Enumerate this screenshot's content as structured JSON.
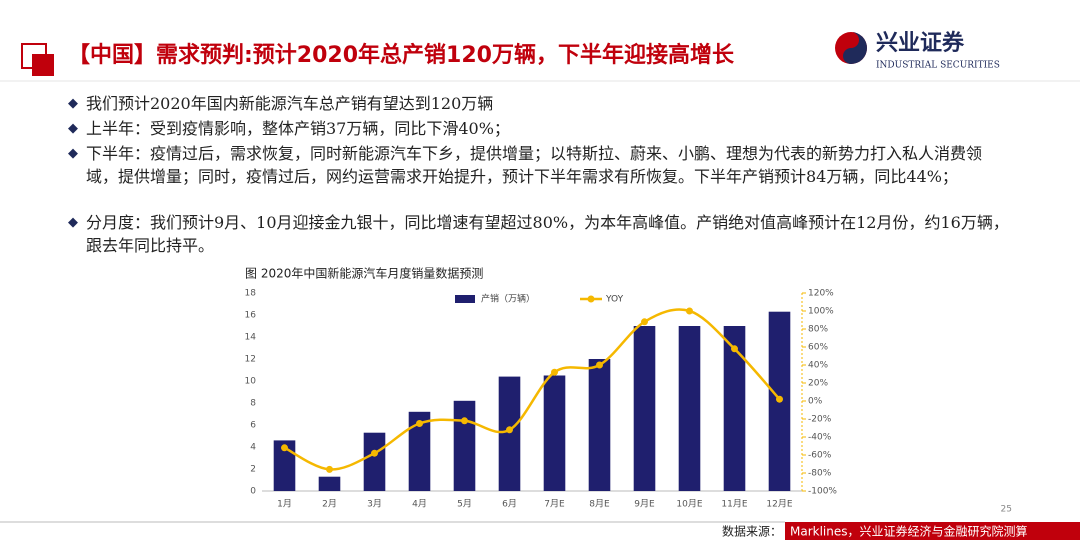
{
  "header": {
    "title": "【中国】需求预判:预计2020年总产销120万辆，下半年迎接高增长",
    "logo_cn": "兴业证券",
    "logo_en": "INDUSTRIAL SECURITIES"
  },
  "bullets": [
    "我们预计2020年国内新能源汽车总产销有望达到120万辆",
    "上半年：受到疫情影响，整体产销37万辆，同比下滑40%；",
    "下半年：疫情过后，需求恢复，同时新能源汽车下乡，提供增量；以特斯拉、蔚来、小鹏、理想为代表的新势力打入私人消费领域，提供增量；同时，疫情过后，网约运营需求开始提升，预计下半年需求有所恢复。下半年产销预计84万辆，同比44%；",
    "分月度：我们预计9月、10月迎接金九银十，同比增速有望超过80%，为本年高峰值。产销绝对值高峰预计在12月份，约16万辆，跟去年同比持平。"
  ],
  "chart_data": {
    "type": "bar",
    "title": "图 2020年中国新能源汽车月度销量数据预测",
    "categories": [
      "1月",
      "2月",
      "3月",
      "4月",
      "5月",
      "6月",
      "7月E",
      "8月E",
      "9月E",
      "10月E",
      "11月E",
      "12月E"
    ],
    "series": [
      {
        "name": "产销（万辆）",
        "type": "bar",
        "color": "#1f1f6e",
        "values": [
          4.6,
          1.3,
          5.3,
          7.2,
          8.2,
          10.4,
          10.5,
          12.0,
          15.0,
          15.0,
          15.0,
          16.3
        ]
      },
      {
        "name": "YOY",
        "type": "line",
        "axis": "y2",
        "color": "#f5b800",
        "values": [
          -52,
          -76,
          -58,
          -25,
          -22,
          -32,
          32,
          40,
          88,
          100,
          58,
          2
        ]
      }
    ],
    "ylim": [
      0,
      18
    ],
    "yticks": [
      0,
      2,
      4,
      6,
      8,
      10,
      12,
      14,
      16,
      18
    ],
    "y2lim": [
      -100,
      120
    ],
    "y2ticks": [
      {
        "value": -100,
        "label": "-100%"
      },
      {
        "value": -80,
        "label": "-80%"
      },
      {
        "value": -60,
        "label": "-60%"
      },
      {
        "value": -40,
        "label": "-40%"
      },
      {
        "value": -20,
        "label": "-20%"
      },
      {
        "value": 0,
        "label": "0%"
      },
      {
        "value": 20,
        "label": "20%"
      },
      {
        "value": 40,
        "label": "40%"
      },
      {
        "value": 60,
        "label": "60%"
      },
      {
        "value": 80,
        "label": "80%"
      },
      {
        "value": 100,
        "label": "100%"
      },
      {
        "value": 120,
        "label": "120%"
      }
    ]
  },
  "footer": {
    "page": "25",
    "source_label": "数据来源：",
    "source_text": "Marklines，兴业证券经济与金融研究院测算"
  }
}
